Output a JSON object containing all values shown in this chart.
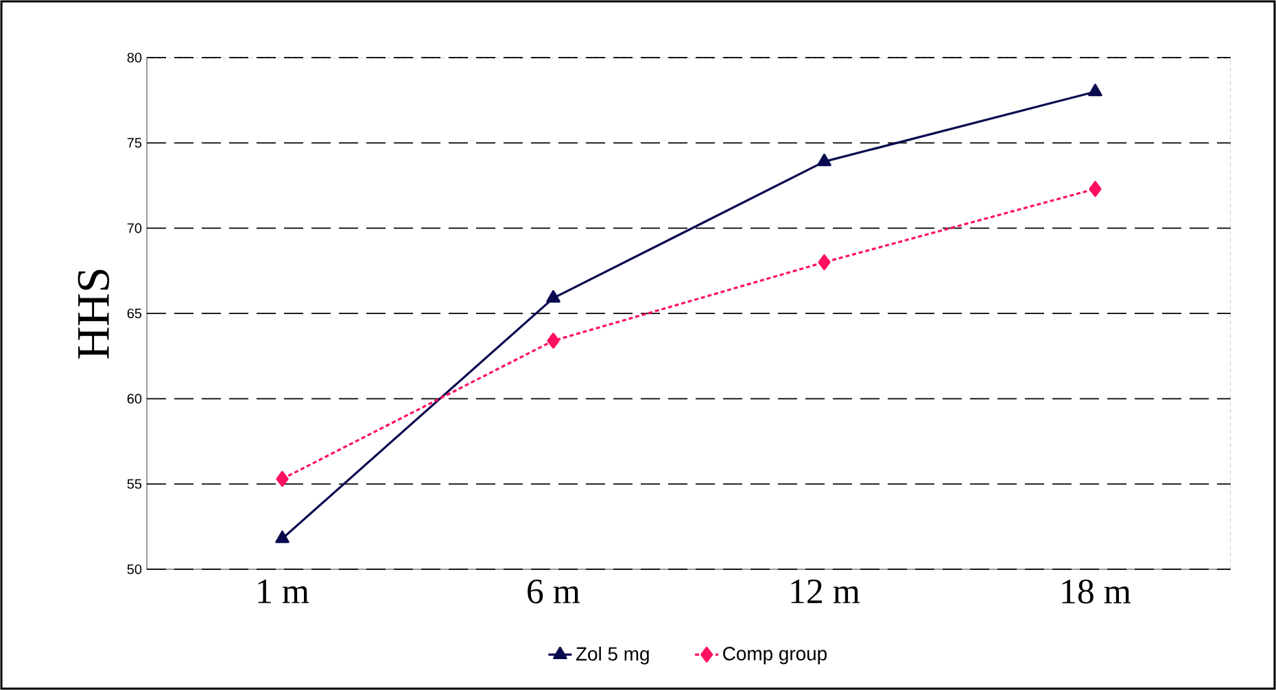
{
  "chart_data": {
    "type": "line",
    "ylabel": "HHS",
    "categories": [
      "1 m",
      "6 m",
      "12 m",
      "18 m"
    ],
    "series": [
      {
        "name": "Zol 5 mg",
        "color": "#0a0a50",
        "marker": "triangle",
        "line_style": "solid",
        "values": [
          51.8,
          65.9,
          73.9,
          78.0
        ]
      },
      {
        "name": "Comp group",
        "color": "#ff1060",
        "marker": "diamond",
        "line_style": "dotted",
        "values": [
          55.3,
          63.4,
          68.0,
          72.3
        ]
      }
    ],
    "ylim": [
      50,
      80
    ],
    "yticks": [
      50,
      55,
      60,
      65,
      70,
      75,
      80
    ],
    "grid": "y",
    "legend": "bottom"
  }
}
